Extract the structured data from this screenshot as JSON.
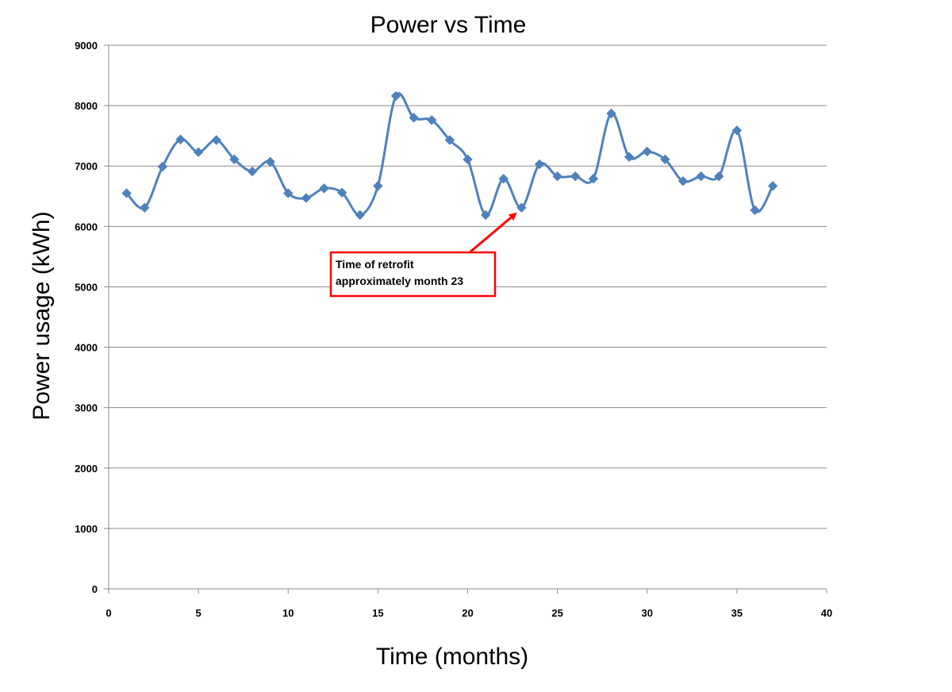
{
  "chart_data": {
    "type": "line",
    "title": "Power vs Time",
    "xlabel": "Time  (months)",
    "ylabel": "Power usage (kWh)",
    "xlim": [
      0,
      40
    ],
    "ylim": [
      0,
      9000
    ],
    "xticks": [
      0,
      5,
      10,
      15,
      20,
      25,
      30,
      35,
      40
    ],
    "yticks": [
      0,
      1000,
      2000,
      3000,
      4000,
      5000,
      6000,
      7000,
      8000,
      9000
    ],
    "grid": "horizontal",
    "legend": "none",
    "smooth": true,
    "series": [
      {
        "color": "#4F81BD",
        "marker": "diamond",
        "x": [
          1,
          2,
          3,
          4,
          5,
          6,
          7,
          8,
          9,
          10,
          11,
          12,
          13,
          14,
          15,
          16,
          17,
          18,
          19,
          20,
          21,
          22,
          23,
          24,
          25,
          26,
          27,
          28,
          29,
          30,
          31,
          32,
          33,
          34,
          35,
          36,
          37
        ],
        "y": [
          6550,
          6310,
          6990,
          7440,
          7230,
          7430,
          7110,
          6910,
          7070,
          6550,
          6470,
          6630,
          6560,
          6190,
          6670,
          8160,
          7800,
          7760,
          7430,
          7110,
          6190,
          6790,
          6310,
          7030,
          6830,
          6830,
          6790,
          7870,
          7150,
          7240,
          7110,
          6750,
          6830,
          6830,
          7590,
          6270,
          6670
        ]
      }
    ],
    "annotations": [
      {
        "lines": [
          "Time of retrofit",
          "approximately month 23"
        ],
        "arrow_target": {
          "x": 23,
          "y": 6310
        },
        "box_color": "#FF0000",
        "arrow_color": "#FF0000"
      }
    ]
  }
}
